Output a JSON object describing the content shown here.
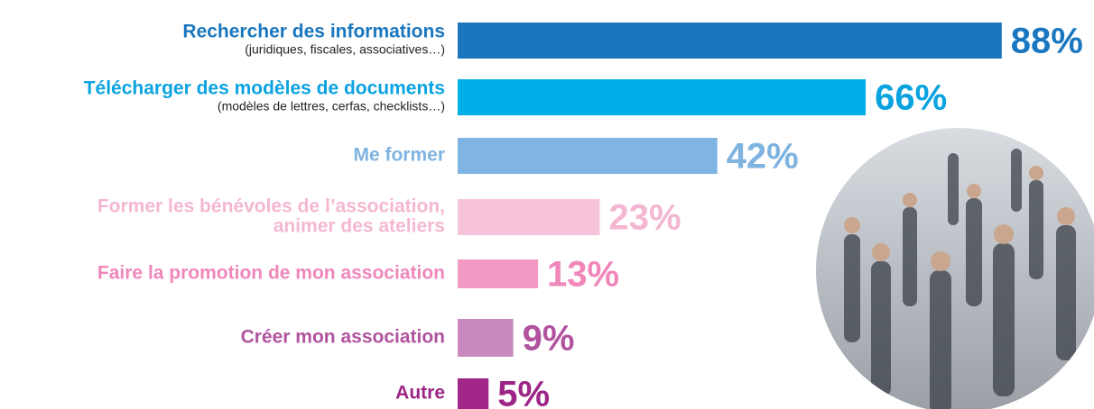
{
  "chart_data": {
    "type": "bar",
    "orientation": "horizontal",
    "categories": [
      [
        "Rechercher des informations"
      ],
      [
        "Télécharger des modèles de documents"
      ],
      [
        "Me former"
      ],
      [
        "Former les bénévoles de l’association,",
        "animer des ateliers"
      ],
      [
        "Faire la promotion de mon association"
      ],
      [
        "Créer mon association"
      ],
      [
        "Autre"
      ]
    ],
    "sublabels": [
      "(juridiques, fiscales, associatives…)",
      "(modèles de lettres, cerfas, checklists…)",
      null,
      null,
      null,
      null,
      null
    ],
    "values": [
      88,
      66,
      42,
      23,
      13,
      9,
      5
    ],
    "value_labels": [
      "88%",
      "66%",
      "42%",
      "23%",
      "13%",
      "9%",
      "5%"
    ],
    "colors": [
      "#1a77bf",
      "#00aee8",
      "#80b5e3",
      "#f7c3da",
      "#f29ac3",
      "#c98bbf",
      "#a1268a"
    ],
    "label_colors": [
      "#1a77bf",
      "#0aa3e0",
      "#7fb3e0",
      "#f4b7d2",
      "#f087bb",
      "#b1539f",
      "#9c2585"
    ]
  }
}
